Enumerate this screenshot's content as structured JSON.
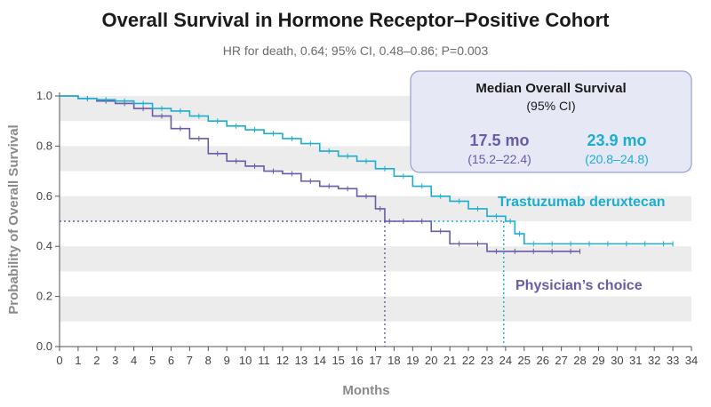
{
  "colors": {
    "trastuzumab": "#1aaed0",
    "physician": "#6a5aa8",
    "band": "#ececec",
    "box_fill": "#e6e8f6",
    "box_stroke": "#9aa0d0"
  },
  "chart_data": {
    "type": "line",
    "title": "Overall Survival in Hormone Receptor–Positive Cohort",
    "subtitle": "HR for death, 0.64; 95% CI, 0.48–0.86; P=0.003",
    "xlabel": "Months",
    "ylabel": "Probability of Overall Survival",
    "xlim": [
      0,
      34
    ],
    "ylim": [
      0,
      1.0
    ],
    "x_ticks": [
      "0",
      "1",
      "2",
      "3",
      "4",
      "5",
      "6",
      "7",
      "8",
      "9",
      "10",
      "11",
      "12",
      "13",
      "14",
      "15",
      "16",
      "17",
      "18",
      "19",
      "20",
      "21",
      "22",
      "23",
      "24",
      "25",
      "26",
      "27",
      "28",
      "29",
      "30",
      "31",
      "32",
      "33",
      "34"
    ],
    "y_ticks": [
      "0.0",
      "0.2",
      "0.4",
      "0.6",
      "0.8",
      "1.0"
    ],
    "series": [
      {
        "name": "Trastuzumab deruxtecan",
        "color_key": "trastuzumab",
        "points": [
          [
            0,
            1.0
          ],
          [
            1,
            0.99
          ],
          [
            2,
            0.985
          ],
          [
            3,
            0.98
          ],
          [
            4,
            0.97
          ],
          [
            5,
            0.95
          ],
          [
            6,
            0.94
          ],
          [
            7,
            0.92
          ],
          [
            8,
            0.9
          ],
          [
            9,
            0.88
          ],
          [
            10,
            0.865
          ],
          [
            11,
            0.85
          ],
          [
            12,
            0.83
          ],
          [
            13,
            0.81
          ],
          [
            14,
            0.78
          ],
          [
            15,
            0.76
          ],
          [
            16,
            0.74
          ],
          [
            17,
            0.71
          ],
          [
            18,
            0.68
          ],
          [
            19,
            0.64
          ],
          [
            20,
            0.6
          ],
          [
            21,
            0.58
          ],
          [
            22,
            0.55
          ],
          [
            23,
            0.52
          ],
          [
            24,
            0.5
          ],
          [
            24.5,
            0.45
          ],
          [
            25,
            0.41
          ],
          [
            26,
            0.41
          ],
          [
            27,
            0.41
          ],
          [
            28,
            0.41
          ],
          [
            29,
            0.41
          ],
          [
            30,
            0.41
          ],
          [
            31,
            0.41
          ],
          [
            32,
            0.41
          ],
          [
            33,
            0.41
          ]
        ],
        "median_months": 23.9
      },
      {
        "name": "Physician’s choice",
        "color_key": "physician",
        "points": [
          [
            0,
            1.0
          ],
          [
            1,
            0.99
          ],
          [
            2,
            0.98
          ],
          [
            3,
            0.97
          ],
          [
            4,
            0.95
          ],
          [
            5,
            0.92
          ],
          [
            6,
            0.87
          ],
          [
            7,
            0.83
          ],
          [
            8,
            0.77
          ],
          [
            9,
            0.74
          ],
          [
            10,
            0.72
          ],
          [
            11,
            0.7
          ],
          [
            12,
            0.69
          ],
          [
            13,
            0.66
          ],
          [
            14,
            0.64
          ],
          [
            15,
            0.63
          ],
          [
            16,
            0.6
          ],
          [
            17,
            0.55
          ],
          [
            17.5,
            0.5
          ],
          [
            18,
            0.5
          ],
          [
            19,
            0.5
          ],
          [
            20,
            0.46
          ],
          [
            21,
            0.41
          ],
          [
            22,
            0.41
          ],
          [
            23,
            0.38
          ],
          [
            24,
            0.38
          ],
          [
            25,
            0.38
          ],
          [
            26,
            0.38
          ],
          [
            27,
            0.38
          ],
          [
            28,
            0.38
          ]
        ],
        "median_months": 17.5
      }
    ],
    "median_line_y": 0.5,
    "median_box": {
      "title": "Median Overall Survival",
      "subtitle": "(95% CI)",
      "physician_median": "17.5 mo",
      "physician_ci": "(15.2–22.4)",
      "trastuzumab_median": "23.9 mo",
      "trastuzumab_ci": "(20.8–24.8)"
    }
  }
}
